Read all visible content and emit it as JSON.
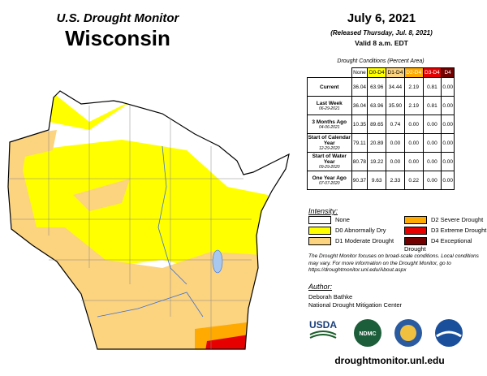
{
  "header": {
    "title": "U.S. Drought Monitor",
    "state": "Wisconsin",
    "date": "July 6, 2021",
    "released": "(Released Thursday, Jul. 8, 2021)",
    "valid": "Valid 8 a.m. EDT"
  },
  "table": {
    "caption": "Drought Conditions (Percent Area)",
    "columns": [
      {
        "label": "None",
        "color": "#ffffff",
        "text": "#000000"
      },
      {
        "label": "D0-D4",
        "color": "#ffff00",
        "text": "#000000"
      },
      {
        "label": "D1-D4",
        "color": "#fcd37f",
        "text": "#000000"
      },
      {
        "label": "D2-D4",
        "color": "#ffaa00",
        "text": "#ffffff"
      },
      {
        "label": "D3-D4",
        "color": "#e60000",
        "text": "#ffffff"
      },
      {
        "label": "D4",
        "color": "#730000",
        "text": "#ffffff"
      }
    ],
    "rows": [
      {
        "label": "Current",
        "values": [
          "36.04",
          "63.96",
          "34.44",
          "2.19",
          "0.81",
          "0.00"
        ]
      },
      {
        "label": "Last Week",
        "date": "06-29-2021",
        "values": [
          "36.04",
          "63.96",
          "35.90",
          "2.19",
          "0.81",
          "0.00"
        ]
      },
      {
        "label": "3 Months Ago",
        "date": "04-06-2021",
        "values": [
          "10.35",
          "89.65",
          "0.74",
          "0.00",
          "0.00",
          "0.00"
        ]
      },
      {
        "label": "Start of Calendar Year",
        "date": "12-29-2020",
        "values": [
          "79.11",
          "20.89",
          "0.00",
          "0.00",
          "0.00",
          "0.00"
        ]
      },
      {
        "label": "Start of Water Year",
        "date": "09-29-2020",
        "values": [
          "80.78",
          "19.22",
          "0.00",
          "0.00",
          "0.00",
          "0.00"
        ]
      },
      {
        "label": "One Year Ago",
        "date": "07-07-2020",
        "values": [
          "90.37",
          "9.63",
          "2.33",
          "0.22",
          "0.00",
          "0.00"
        ]
      }
    ]
  },
  "legend": {
    "title": "Intensity:",
    "items": [
      {
        "label": "None",
        "color": "#ffffff"
      },
      {
        "label": "D2 Severe Drought",
        "color": "#ffaa00"
      },
      {
        "label": "D0 Abnormally Dry",
        "color": "#ffff00"
      },
      {
        "label": "D3 Extreme Drought",
        "color": "#e60000"
      },
      {
        "label": "D1 Moderate Drought",
        "color": "#fcd37f"
      },
      {
        "label": "D4 Exceptional Drought",
        "color": "#730000"
      }
    ]
  },
  "note": "The Drought Monitor focuses on broad-scale conditions. Local conditions may vary. For more information on the Drought Monitor, go to https://droughtmonitor.unl.edu/About.aspx",
  "author": {
    "heading": "Author:",
    "name": "Deborah Bathke",
    "org": "National Drought Mitigation Center"
  },
  "logos": {
    "usda": "USDA",
    "ndmc": "NDMC"
  },
  "url": "droughtmonitor.unl.edu"
}
